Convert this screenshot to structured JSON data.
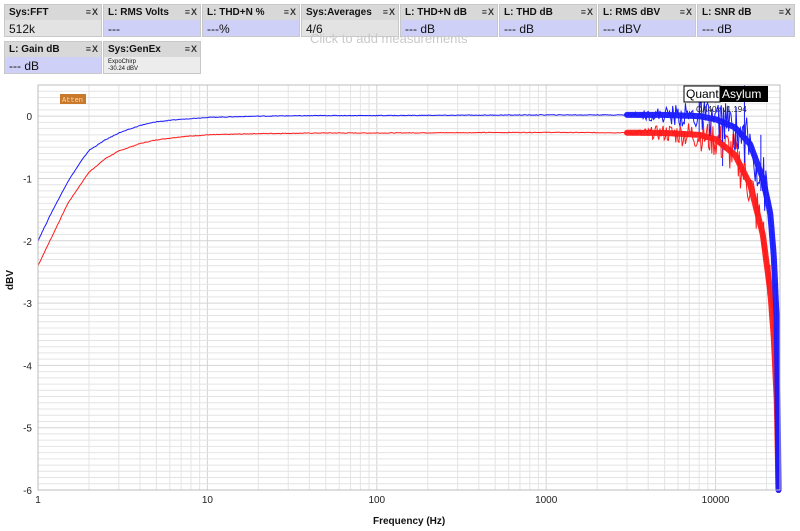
{
  "measurement_tiles": [
    {
      "title": "Sys:FFT",
      "value": "512k",
      "kind": "sys"
    },
    {
      "title": "L: RMS Volts",
      "value": "---",
      "kind": "meas"
    },
    {
      "title": "L: THD+N %",
      "value": "---%",
      "kind": "meas"
    },
    {
      "title": "Sys:Averages",
      "value": "4/6",
      "kind": "sys"
    },
    {
      "title": "L: THD+N dB",
      "value": "--- dB",
      "kind": "meas"
    },
    {
      "title": "L: THD dB",
      "value": "--- dB",
      "kind": "meas"
    },
    {
      "title": "L: RMS dBV",
      "value": "--- dBV",
      "kind": "meas"
    },
    {
      "title": "L: SNR dB",
      "value": "--- dB",
      "kind": "meas"
    },
    {
      "title": "L: Gain dB",
      "value": "--- dB",
      "kind": "meas"
    },
    {
      "title": "Sys:GenEx",
      "value": "ExpoChirp",
      "value2": "-30.24 dBV",
      "kind": "genex"
    }
  ],
  "tile_controls": "≡X",
  "add_hint": "Click to add measurements",
  "atten_badge": "Atten",
  "brand": {
    "left": "Quant",
    "right": "Asylum",
    "version": "QA40x v1.194"
  },
  "colors": {
    "blue": "#1a1aff",
    "red": "#ff1a1a",
    "tile_value_bg": "#ced0f7",
    "badge": "#c87a2a"
  },
  "chart_data": {
    "type": "line",
    "xlabel": "Frequency (Hz)",
    "ylabel": "dBV",
    "xscale": "log",
    "xlim": [
      1,
      24000
    ],
    "ylim": [
      -6,
      0.5
    ],
    "x_ticks": [
      1,
      10,
      100,
      1000,
      10000
    ],
    "x_tick_labels": [
      "1",
      "10",
      "100",
      "1000",
      "10000"
    ],
    "y_ticks": [
      0,
      -1,
      -2,
      -3,
      -4,
      -5,
      -6
    ],
    "y_tick_labels": [
      "0",
      "-1",
      "-2",
      "-3",
      "-4",
      "-5",
      "-6"
    ],
    "grid": true,
    "series": [
      {
        "color": "#1a1aff",
        "x": [
          1,
          1.2,
          1.5,
          1.8,
          2,
          2.5,
          3,
          4,
          5,
          7,
          10,
          20,
          50,
          100,
          1000,
          5000,
          8000,
          10000,
          13000,
          16000,
          19000,
          21000,
          22000,
          23000,
          23500
        ],
        "y": [
          -2.0,
          -1.55,
          -1.05,
          -0.72,
          -0.55,
          -0.38,
          -0.27,
          -0.15,
          -0.09,
          -0.05,
          -0.02,
          0.0,
          0.01,
          0.01,
          0.02,
          0.02,
          0.0,
          -0.05,
          -0.18,
          -0.45,
          -1.0,
          -1.55,
          -2.2,
          -3.3,
          -6.0
        ]
      },
      {
        "color": "#ff1a1a",
        "x": [
          1,
          1.2,
          1.5,
          1.8,
          2,
          2.5,
          3,
          4,
          5,
          7,
          10,
          20,
          50,
          100,
          1000,
          5000,
          8000,
          10000,
          13000,
          16000,
          19000,
          21000,
          22000,
          23000,
          23500
        ],
        "y": [
          -2.4,
          -1.95,
          -1.4,
          -1.08,
          -0.9,
          -0.68,
          -0.56,
          -0.44,
          -0.38,
          -0.33,
          -0.3,
          -0.28,
          -0.27,
          -0.27,
          -0.26,
          -0.27,
          -0.3,
          -0.37,
          -0.62,
          -1.1,
          -1.9,
          -2.8,
          -3.5,
          -4.6,
          -6.0
        ]
      }
    ],
    "spurs": [
      {
        "x": 8000,
        "y": 0.25
      },
      {
        "x": 11000,
        "y": -0.8
      },
      {
        "x": 13500,
        "y": -0.4
      },
      {
        "x": 14800,
        "y": 0.5
      },
      {
        "x": 18500,
        "y": -1.2
      }
    ]
  }
}
